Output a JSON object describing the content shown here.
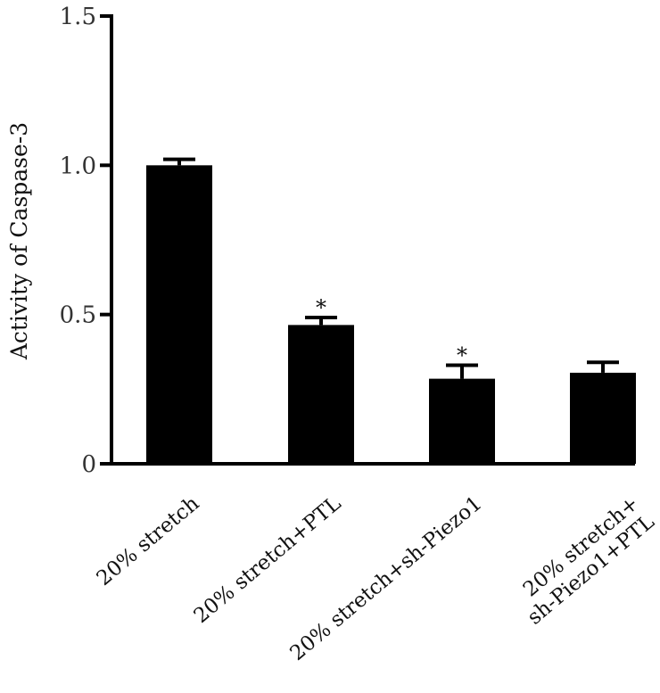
{
  "chart_data": {
    "type": "bar",
    "title": "",
    "xlabel": "",
    "ylabel": "Activity of Caspase-3",
    "ylim": [
      0,
      1.5
    ],
    "yticks": [
      {
        "value": 0,
        "label": "0"
      },
      {
        "value": 0.5,
        "label": "0.5"
      },
      {
        "value": 1.0,
        "label": "1.0"
      },
      {
        "value": 1.5,
        "label": "1.5"
      }
    ],
    "categories": [
      [
        "20% stretch"
      ],
      [
        "20% stretch+PTL"
      ],
      [
        "20% stretch+sh-Piezo1"
      ],
      [
        "20% stretch+",
        "sh-Piezo1+PTL"
      ]
    ],
    "values": [
      1.0,
      0.465,
      0.285,
      0.305
    ],
    "errors": [
      0.02,
      0.025,
      0.045,
      0.035
    ],
    "significance": [
      "",
      "*",
      "*",
      ""
    ],
    "bar_color": "#000000",
    "grid": false,
    "legend": "none"
  }
}
